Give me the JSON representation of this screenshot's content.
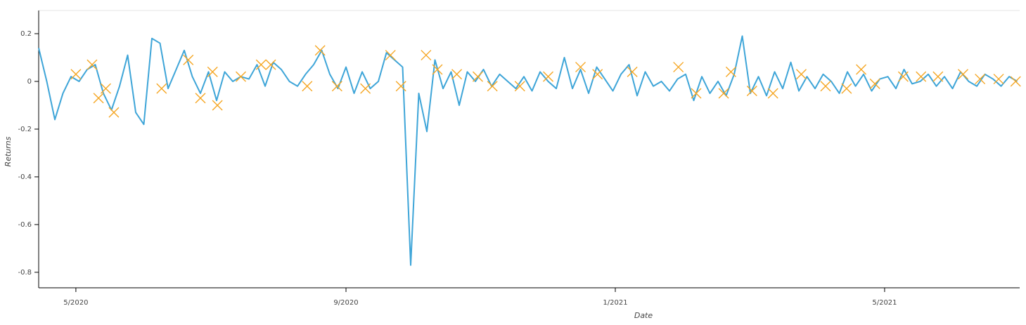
{
  "chart_data": {
    "type": "line",
    "x_label": "Date",
    "y_label": "Returns",
    "xlim": [
      2020.287,
      2021.5
    ],
    "ylim": [
      -0.865,
      0.297
    ],
    "xticks": [
      {
        "value": 2020.333,
        "label": "5/2020"
      },
      {
        "value": 2020.667,
        "label": "9/2020"
      },
      {
        "value": 2021.0,
        "label": "1/2021"
      },
      {
        "value": 2021.333,
        "label": "5/2021"
      }
    ],
    "yticks": [
      -0.8,
      -0.6,
      -0.4,
      -0.2,
      0,
      0.2
    ],
    "series": [
      {
        "type": "line",
        "color": "#3ea5d8",
        "x": [
          2020.287,
          2020.297,
          2020.307,
          2020.317,
          2020.327,
          2020.337,
          2020.347,
          2020.357,
          2020.367,
          2020.377,
          2020.387,
          2020.397,
          2020.407,
          2020.417,
          2020.427,
          2020.437,
          2020.447,
          2020.457,
          2020.467,
          2020.477,
          2020.487,
          2020.497,
          2020.507,
          2020.517,
          2020.527,
          2020.537,
          2020.547,
          2020.557,
          2020.567,
          2020.577,
          2020.587,
          2020.597,
          2020.607,
          2020.617,
          2020.627,
          2020.637,
          2020.647,
          2020.657,
          2020.667,
          2020.677,
          2020.687,
          2020.697,
          2020.707,
          2020.717,
          2020.727,
          2020.737,
          2020.747,
          2020.757,
          2020.767,
          2020.777,
          2020.787,
          2020.797,
          2020.807,
          2020.817,
          2020.827,
          2020.837,
          2020.847,
          2020.857,
          2020.867,
          2020.877,
          2020.887,
          2020.897,
          2020.907,
          2020.917,
          2020.927,
          2020.937,
          2020.947,
          2020.957,
          2020.967,
          2020.977,
          2020.987,
          2020.997,
          2021.007,
          2021.017,
          2021.027,
          2021.037,
          2021.047,
          2021.057,
          2021.067,
          2021.077,
          2021.087,
          2021.097,
          2021.107,
          2021.117,
          2021.127,
          2021.137,
          2021.147,
          2021.157,
          2021.167,
          2021.177,
          2021.187,
          2021.197,
          2021.207,
          2021.217,
          2021.227,
          2021.237,
          2021.247,
          2021.257,
          2021.267,
          2021.277,
          2021.287,
          2021.297,
          2021.307,
          2021.317,
          2021.327,
          2021.337,
          2021.347,
          2021.357,
          2021.367,
          2021.377,
          2021.387,
          2021.397,
          2021.407,
          2021.417,
          2021.427,
          2021.437,
          2021.447,
          2021.457,
          2021.467,
          2021.477,
          2021.487,
          2021.497
        ],
        "values": [
          0.14,
          0.0,
          -0.16,
          -0.05,
          0.02,
          0.0,
          0.05,
          0.07,
          -0.05,
          -0.12,
          -0.02,
          0.11,
          -0.13,
          -0.18,
          0.18,
          0.16,
          -0.03,
          0.05,
          0.13,
          0.02,
          -0.05,
          0.04,
          -0.08,
          0.04,
          0.0,
          0.02,
          0.01,
          0.07,
          -0.02,
          0.08,
          0.05,
          0.0,
          -0.02,
          0.03,
          0.07,
          0.13,
          0.03,
          -0.03,
          0.06,
          -0.05,
          0.04,
          -0.03,
          0.0,
          0.12,
          0.09,
          0.06,
          -0.77,
          -0.05,
          -0.21,
          0.09,
          -0.03,
          0.04,
          -0.1,
          0.04,
          0.0,
          0.05,
          -0.02,
          0.03,
          0.0,
          -0.03,
          0.02,
          -0.04,
          0.04,
          0.0,
          -0.03,
          0.1,
          -0.03,
          0.05,
          -0.05,
          0.06,
          0.01,
          -0.04,
          0.03,
          0.07,
          -0.06,
          0.04,
          -0.02,
          0.0,
          -0.04,
          0.01,
          0.03,
          -0.08,
          0.02,
          -0.05,
          0.0,
          -0.06,
          0.03,
          0.19,
          -0.05,
          0.02,
          -0.06,
          0.04,
          -0.03,
          0.08,
          -0.04,
          0.02,
          -0.03,
          0.03,
          0.0,
          -0.05,
          0.04,
          -0.02,
          0.03,
          -0.04,
          0.01,
          0.02,
          -0.03,
          0.05,
          -0.01,
          0.0,
          0.03,
          -0.02,
          0.02,
          -0.03,
          0.04,
          0.0,
          -0.02,
          0.03,
          0.01,
          -0.02,
          0.02,
          0.0
        ]
      },
      {
        "type": "scatter",
        "marker": "x",
        "color": "#f5a623",
        "x": [
          2020.333,
          2020.353,
          2020.361,
          2020.37,
          2020.38,
          2020.439,
          2020.472,
          2020.487,
          2020.502,
          2020.508,
          2020.537,
          2020.562,
          2020.574,
          2020.619,
          2020.635,
          2020.656,
          2020.691,
          2020.722,
          2020.735,
          2020.766,
          2020.78,
          2020.804,
          2020.83,
          2020.848,
          2020.882,
          2020.917,
          2020.957,
          2020.978,
          2021.021,
          2021.078,
          2021.1,
          2021.134,
          2021.143,
          2021.169,
          2021.195,
          2021.23,
          2021.26,
          2021.286,
          2021.304,
          2021.321,
          2021.356,
          2021.378,
          2021.399,
          2021.43,
          2021.451,
          2021.474,
          2021.495
        ],
        "values": [
          0.03,
          0.07,
          -0.07,
          -0.03,
          -0.13,
          -0.03,
          0.09,
          -0.07,
          0.04,
          -0.1,
          0.02,
          0.07,
          0.07,
          -0.02,
          0.13,
          -0.02,
          -0.03,
          0.11,
          -0.02,
          0.11,
          0.05,
          0.03,
          0.02,
          -0.02,
          -0.02,
          0.02,
          0.06,
          0.03,
          0.04,
          0.06,
          -0.05,
          -0.05,
          0.04,
          -0.04,
          -0.05,
          0.03,
          -0.02,
          -0.03,
          0.05,
          -0.01,
          0.02,
          0.02,
          0.02,
          0.03,
          0.01,
          0.01,
          0.0
        ]
      }
    ]
  }
}
